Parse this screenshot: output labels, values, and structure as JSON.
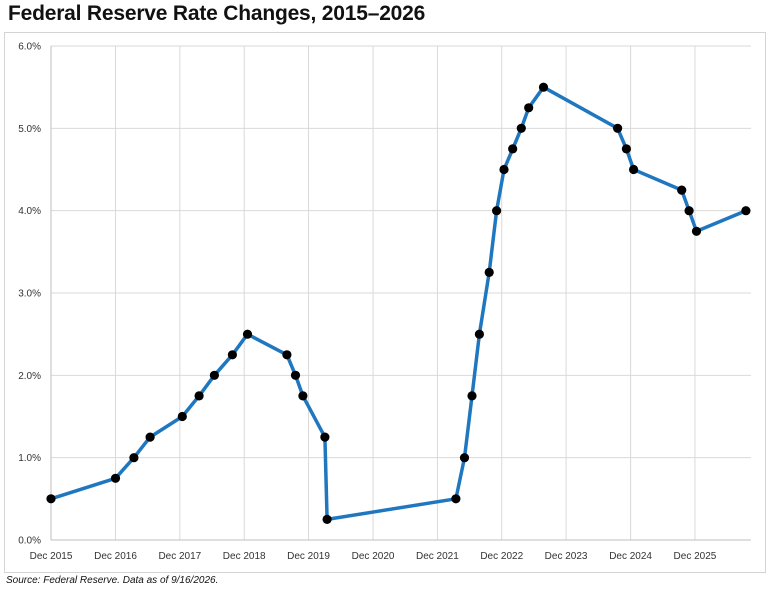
{
  "title": "Federal Reserve Rate Changes, 2015–2026",
  "source": "Source: Federal Reserve. Data as of 9/16/2026.",
  "colors": {
    "line": "#1f77c0",
    "marker": "#000000",
    "grid": "#d9d9d9",
    "axis": "#bfbfbf"
  },
  "chart_data": {
    "type": "line",
    "title": "Federal Reserve Rate Changes, 2015–2026",
    "xlabel": "",
    "ylabel": "",
    "x_unit": "date",
    "xlim": [
      "2015-12-01",
      "2026-10-15"
    ],
    "ylim": [
      0,
      6
    ],
    "x_tick_labels": [
      "Dec 2015",
      "Dec 2016",
      "Dec 2017",
      "Dec 2018",
      "Dec 2019",
      "Dec 2020",
      "Dec 2021",
      "Dec 2022",
      "Dec 2023",
      "Dec 2024",
      "Dec 2025"
    ],
    "x_tick_dates": [
      "2015-12-01",
      "2016-12-01",
      "2017-12-01",
      "2018-12-01",
      "2019-12-01",
      "2020-12-01",
      "2021-12-01",
      "2022-12-01",
      "2023-12-01",
      "2024-12-01",
      "2025-12-01"
    ],
    "y_ticks": [
      0,
      1,
      2,
      3,
      4,
      5,
      6
    ],
    "y_tick_labels": [
      "0.0%",
      "1.0%",
      "2.0%",
      "3.0%",
      "4.0%",
      "5.0%",
      "6.0%"
    ],
    "grid": true,
    "legend": "none",
    "markers": true,
    "series": [
      {
        "points": [
          {
            "x": "2015-12-01",
            "y": 0.5
          },
          {
            "x": "2016-12-01",
            "y": 0.75
          },
          {
            "x": "2017-03-15",
            "y": 1.0
          },
          {
            "x": "2017-06-15",
            "y": 1.25
          },
          {
            "x": "2017-12-15",
            "y": 1.5
          },
          {
            "x": "2018-03-20",
            "y": 1.75
          },
          {
            "x": "2018-06-15",
            "y": 2.0
          },
          {
            "x": "2018-09-25",
            "y": 2.25
          },
          {
            "x": "2018-12-20",
            "y": 2.5
          },
          {
            "x": "2019-07-31",
            "y": 2.25
          },
          {
            "x": "2019-09-18",
            "y": 2.0
          },
          {
            "x": "2019-10-30",
            "y": 1.75
          },
          {
            "x": "2020-03-03",
            "y": 1.25
          },
          {
            "x": "2020-03-15",
            "y": 0.25
          },
          {
            "x": "2022-03-16",
            "y": 0.5
          },
          {
            "x": "2022-05-04",
            "y": 1.0
          },
          {
            "x": "2022-06-15",
            "y": 1.75
          },
          {
            "x": "2022-07-27",
            "y": 2.5
          },
          {
            "x": "2022-09-21",
            "y": 3.25
          },
          {
            "x": "2022-11-02",
            "y": 4.0
          },
          {
            "x": "2022-12-14",
            "y": 4.5
          },
          {
            "x": "2023-02-01",
            "y": 4.75
          },
          {
            "x": "2023-03-22",
            "y": 5.0
          },
          {
            "x": "2023-05-03",
            "y": 5.25
          },
          {
            "x": "2023-07-26",
            "y": 5.5
          },
          {
            "x": "2024-09-18",
            "y": 5.0
          },
          {
            "x": "2024-11-07",
            "y": 4.75
          },
          {
            "x": "2024-12-18",
            "y": 4.5
          },
          {
            "x": "2025-09-17",
            "y": 4.25
          },
          {
            "x": "2025-10-29",
            "y": 4.0
          },
          {
            "x": "2025-12-10",
            "y": 3.75
          },
          {
            "x": "2026-09-16",
            "y": 4.0
          }
        ]
      }
    ]
  }
}
